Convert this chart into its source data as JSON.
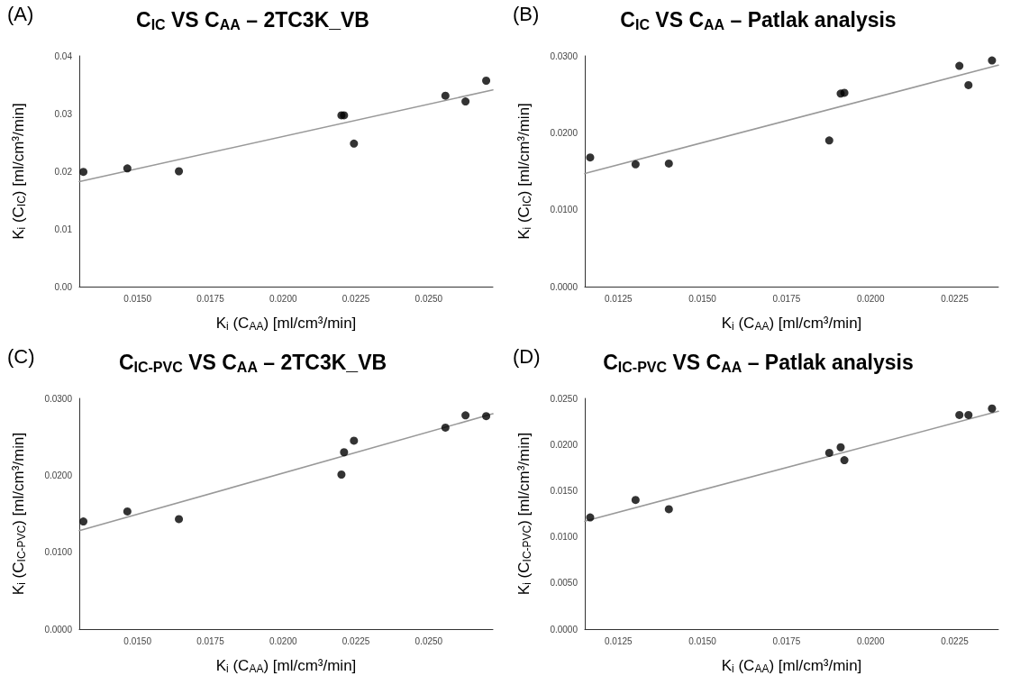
{
  "chart_data": [
    {
      "type": "scatter",
      "title": "C$_{IC}$ VS C$_{AA}$ – 2TC3K_VB",
      "xlabel": "K$_{i}$ (C$_{AA}$) [ml/cm³/min]",
      "ylabel": "K$_{i}$ (C$_{IC}$) [ml/cm³/min]",
      "annotations": [
        "(A)"
      ],
      "marker": "circle",
      "xlim": [
        0.013,
        0.0272
      ],
      "xticks": [
        {
          "value": 0.015,
          "label": "0.0150"
        },
        {
          "value": 0.0175,
          "label": "0.0175"
        },
        {
          "value": 0.02,
          "label": "0.0200"
        },
        {
          "value": 0.0225,
          "label": "0.0225"
        },
        {
          "value": 0.025,
          "label": "0.0250"
        }
      ],
      "ylim": [
        0,
        0.04
      ],
      "yticks": [
        {
          "value": 0,
          "label": "0.00"
        },
        {
          "value": 0.01,
          "label": "0.01"
        },
        {
          "value": 0.02,
          "label": "0.02"
        },
        {
          "value": 0.03,
          "label": "0.03"
        },
        {
          "value": 0.04,
          "label": "0.04"
        }
      ],
      "series": [
        {
          "color": "#000000",
          "x": [
            0.01314,
            0.01465,
            0.01642,
            0.022,
            0.02209,
            0.02243,
            0.02557,
            0.02626,
            0.02697
          ],
          "values": [
            0.0199,
            0.0205,
            0.02,
            0.0297,
            0.0297,
            0.0248,
            0.0331,
            0.0321,
            0.0357
          ]
        },
        {
          "type": "line",
          "color": "#999999",
          "marker": "none",
          "x": [
            0.013,
            0.0272
          ],
          "values": [
            0.0182,
            0.0341
          ]
        }
      ]
    },
    {
      "type": "scatter",
      "title": "C$_{IC}$ VS C$_{AA}$ – Patlak analysis",
      "xlabel": "K$_{i}$ (C$_{AA}$) [ml/cm³/min]",
      "ylabel": "K$_{i}$ (C$_{IC}$) [ml/cm³/min]",
      "annotations": [
        "(B)"
      ],
      "marker": "circle",
      "xlim": [
        0.0115,
        0.0238
      ],
      "xticks": [
        {
          "value": 0.0125,
          "label": "0.0125"
        },
        {
          "value": 0.015,
          "label": "0.0150"
        },
        {
          "value": 0.0175,
          "label": "0.0175"
        },
        {
          "value": 0.02,
          "label": "0.0200"
        },
        {
          "value": 0.0225,
          "label": "0.0225"
        }
      ],
      "ylim": [
        0,
        0.03
      ],
      "yticks": [
        {
          "value": 0,
          "label": "0.0000"
        },
        {
          "value": 0.01,
          "label": "0.0100"
        },
        {
          "value": 0.02,
          "label": "0.0200"
        },
        {
          "value": 0.03,
          "label": "0.0300"
        }
      ],
      "series": [
        {
          "color": "#000000",
          "x": [
            0.01166,
            0.01301,
            0.014,
            0.01877,
            0.01911,
            0.01922,
            0.02264,
            0.02291,
            0.02361
          ],
          "values": [
            0.0168,
            0.0159,
            0.016,
            0.019,
            0.0251,
            0.0252,
            0.0287,
            0.0262,
            0.0294
          ]
        },
        {
          "type": "line",
          "color": "#999999",
          "marker": "none",
          "x": [
            0.0115,
            0.0238
          ],
          "values": [
            0.0147,
            0.0288
          ]
        }
      ]
    },
    {
      "type": "scatter",
      "title": "C$_{IC-PVC}$ VS C$_{AA}$ – 2TC3K_VB",
      "xlabel": "K$_{i}$ (C$_{AA}$) [ml/cm³/min]",
      "ylabel": "K$_{i}$ (C$_{IC-PVC}$) [ml/cm³/min]",
      "annotations": [
        "(C)"
      ],
      "marker": "circle",
      "xlim": [
        0.013,
        0.0272
      ],
      "xticks": [
        {
          "value": 0.015,
          "label": "0.0150"
        },
        {
          "value": 0.0175,
          "label": "0.0175"
        },
        {
          "value": 0.02,
          "label": "0.0200"
        },
        {
          "value": 0.0225,
          "label": "0.0225"
        },
        {
          "value": 0.025,
          "label": "0.0250"
        }
      ],
      "ylim": [
        0,
        0.03
      ],
      "yticks": [
        {
          "value": 0,
          "label": "0.0000"
        },
        {
          "value": 0.01,
          "label": "0.0100"
        },
        {
          "value": 0.02,
          "label": "0.0200"
        },
        {
          "value": 0.03,
          "label": "0.0300"
        }
      ],
      "series": [
        {
          "color": "#000000",
          "x": [
            0.01314,
            0.01465,
            0.01642,
            0.022,
            0.02209,
            0.02243,
            0.02557,
            0.02626,
            0.02697
          ],
          "values": [
            0.014,
            0.0153,
            0.0143,
            0.0201,
            0.023,
            0.0245,
            0.0262,
            0.0278,
            0.0277
          ]
        },
        {
          "type": "line",
          "color": "#999999",
          "marker": "none",
          "x": [
            0.013,
            0.0272
          ],
          "values": [
            0.0128,
            0.028
          ]
        }
      ]
    },
    {
      "type": "scatter",
      "title": "C$_{IC-PVC}$ VS C$_{AA}$ – Patlak analysis",
      "xlabel": "K$_{i}$ (C$_{AA}$) [ml/cm³/min]",
      "ylabel": "K$_{i}$ (C$_{IC-PVC}$) [ml/cm³/min]",
      "annotations": [
        "(D)"
      ],
      "marker": "circle",
      "xlim": [
        0.0115,
        0.0238
      ],
      "xticks": [
        {
          "value": 0.0125,
          "label": "0.0125"
        },
        {
          "value": 0.015,
          "label": "0.0150"
        },
        {
          "value": 0.0175,
          "label": "0.0175"
        },
        {
          "value": 0.02,
          "label": "0.0200"
        },
        {
          "value": 0.0225,
          "label": "0.0225"
        }
      ],
      "ylim": [
        0,
        0.025
      ],
      "yticks": [
        {
          "value": 0,
          "label": "0.0000"
        },
        {
          "value": 0.005,
          "label": "0.0050"
        },
        {
          "value": 0.01,
          "label": "0.0100"
        },
        {
          "value": 0.015,
          "label": "0.0150"
        },
        {
          "value": 0.02,
          "label": "0.0200"
        },
        {
          "value": 0.025,
          "label": "0.0250"
        }
      ],
      "series": [
        {
          "color": "#000000",
          "x": [
            0.01166,
            0.01301,
            0.014,
            0.01877,
            0.01911,
            0.01922,
            0.02264,
            0.02291,
            0.02361
          ],
          "values": [
            0.0121,
            0.014,
            0.013,
            0.0191,
            0.0197,
            0.0183,
            0.0232,
            0.0232,
            0.0239
          ]
        },
        {
          "type": "line",
          "color": "#999999",
          "marker": "none",
          "x": [
            0.0115,
            0.0238
          ],
          "values": [
            0.0117,
            0.0236
          ]
        }
      ]
    }
  ]
}
